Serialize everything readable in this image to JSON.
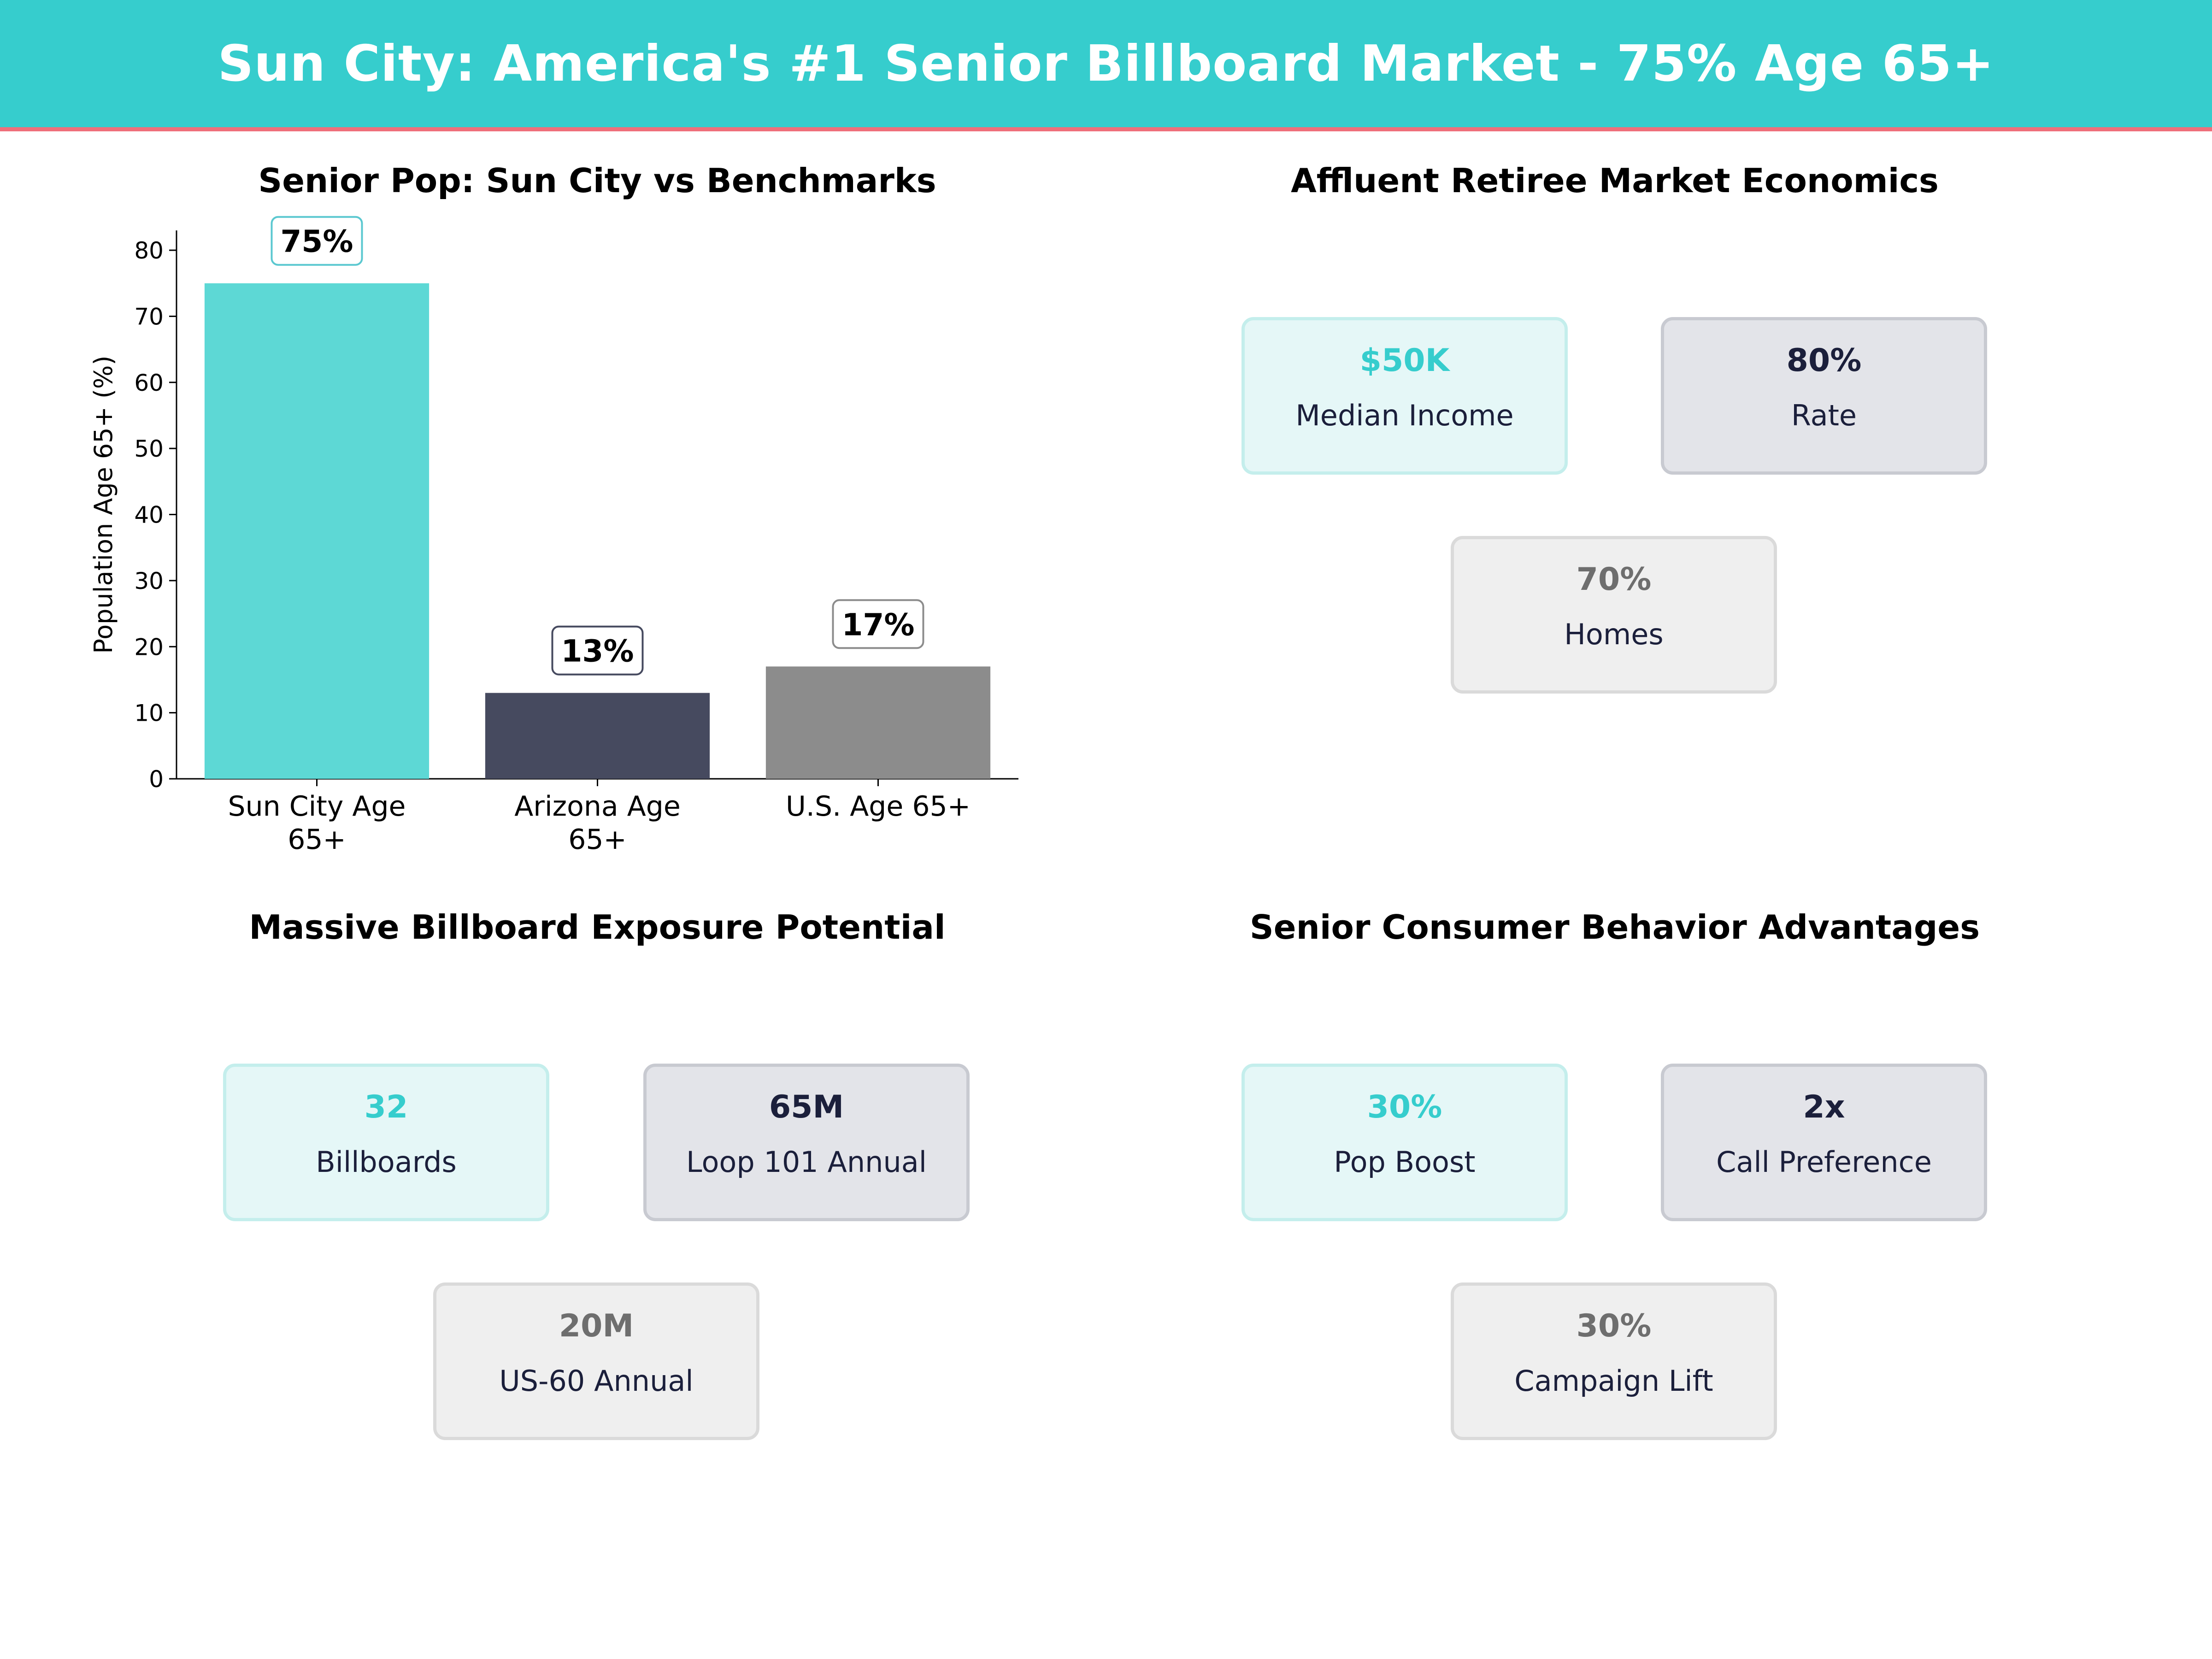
{
  "header": {
    "title": "Sun City: America's #1 Senior Billboard Market - 75% Age 65+"
  },
  "colors": {
    "banner": "#36cdcd",
    "accent_line": "#ef6f7a",
    "teal": "#36cdcd",
    "navy": "#1b1f3b",
    "gray": "#6e6e6e"
  },
  "chart_data": {
    "type": "bar",
    "title": "Senior Pop: Sun City vs Benchmarks",
    "categories": [
      "Sun City Age 65+",
      "Arizona Age 65+",
      "U.S. Age 65+"
    ],
    "category_lines": [
      [
        "Sun City Age",
        "65+"
      ],
      [
        "Arizona Age",
        "65+"
      ],
      [
        "U.S. Age 65+"
      ]
    ],
    "values": [
      75,
      13,
      17
    ],
    "data_labels": [
      "75%",
      "13%",
      "17%"
    ],
    "bar_colors": [
      "#5dd8d5",
      "#464a5f",
      "#8c8c8c"
    ],
    "label_border_colors": [
      "#5bc8d0",
      "#464a5f",
      "#8c8c8c"
    ],
    "xlabel": "",
    "ylabel": "Population Age 65+ (%)",
    "ylim": [
      0,
      83
    ],
    "yticks": [
      0,
      10,
      20,
      30,
      40,
      50,
      60,
      70,
      80
    ],
    "grid": false
  },
  "economics": {
    "title": "Affluent Retiree Market Economics",
    "cards": [
      {
        "value": "$50K",
        "label": "Median Income"
      },
      {
        "value": "80%",
        "label": "Rate"
      },
      {
        "value": "70%",
        "label": "Homes"
      }
    ]
  },
  "exposure": {
    "title": "Massive Billboard Exposure Potential",
    "cards": [
      {
        "value": "32",
        "label": "Billboards"
      },
      {
        "value": "65M",
        "label": "Loop 101 Annual"
      },
      {
        "value": "20M",
        "label": "US-60 Annual"
      }
    ]
  },
  "behavior": {
    "title": "Senior Consumer Behavior Advantages",
    "cards": [
      {
        "value": "30%",
        "label": "Pop Boost"
      },
      {
        "value": "2x",
        "label": "Call Preference"
      },
      {
        "value": "30%",
        "label": "Campaign Lift"
      }
    ]
  }
}
